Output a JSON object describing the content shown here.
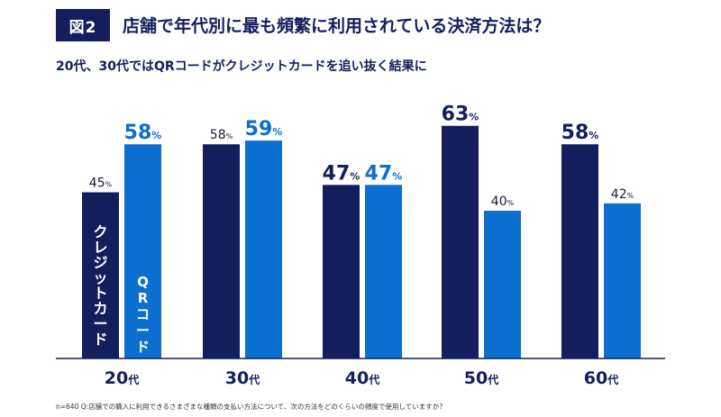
{
  "header": {
    "figure_label": "図2",
    "title": "店舗で年代別に最も頻繁に利用されている決済方法は？",
    "subtitle": "20代、30代ではQRコードがクレジットカードを追い抜く結果に"
  },
  "footnote": "n=640 Q:店舗での購入に利用できるさまざまな種類の支払い方法について、次の方法をどのくらいの頻度で使用していますか?",
  "colors": {
    "credit": "#131f5c",
    "qr": "#0a6fce",
    "title": "#131f5c"
  },
  "chart_data": {
    "type": "bar",
    "categories": [
      "20代",
      "30代",
      "40代",
      "50代",
      "60代"
    ],
    "series": [
      {
        "name": "クレジットカード",
        "values": [
          45,
          58,
          47,
          63,
          58
        ]
      },
      {
        "name": "QRコード",
        "values": [
          58,
          59,
          47,
          40,
          42
        ]
      }
    ],
    "unit": "%",
    "ylim": [
      0,
      70
    ],
    "grid": false,
    "legend": "inside-bars"
  }
}
